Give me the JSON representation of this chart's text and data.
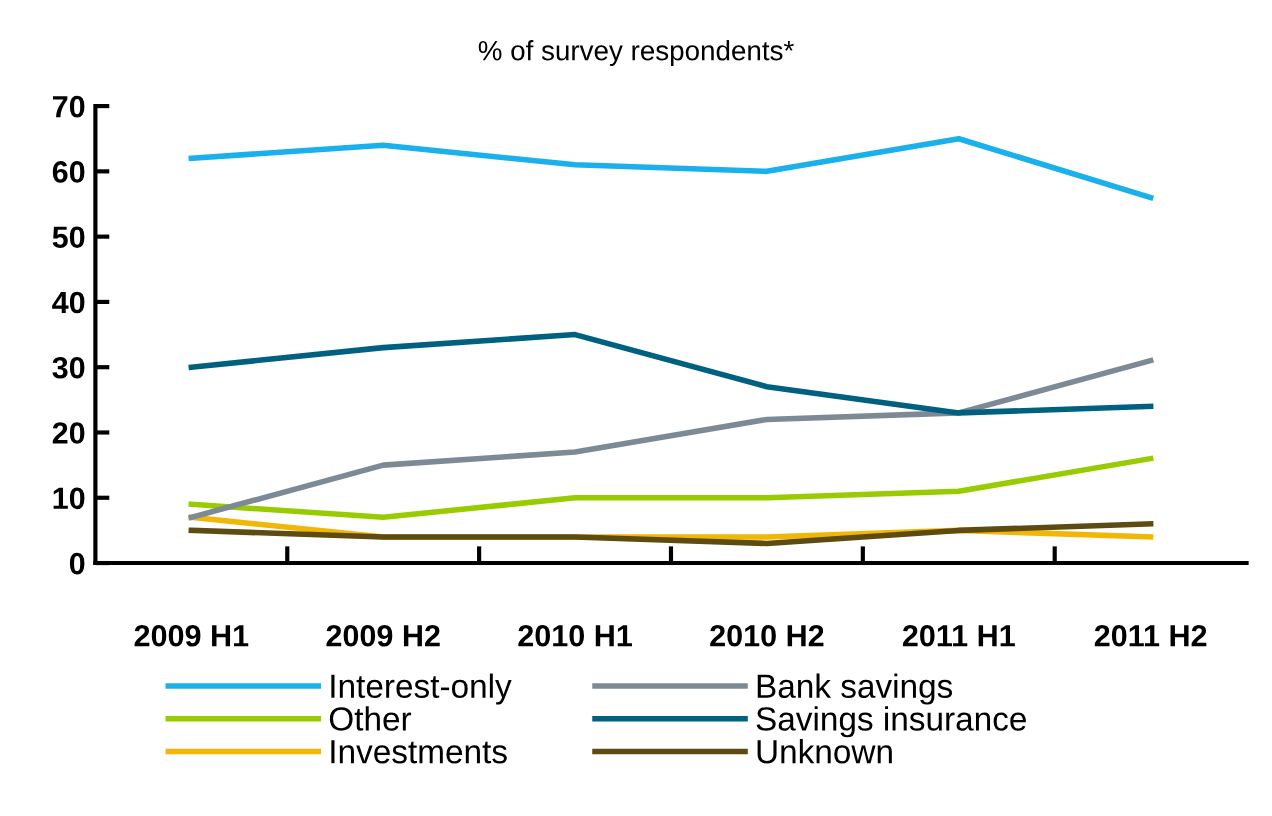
{
  "chart_data": {
    "type": "line",
    "title": "% of survey respondents*",
    "categories": [
      "2009 H1",
      "2009 H2",
      "2010 H1",
      "2010 H2",
      "2011 H1",
      "2011 H2"
    ],
    "series": [
      {
        "name": "Interest-only",
        "color": "#1ab0ec",
        "values": [
          62,
          64,
          61,
          60,
          65,
          56
        ]
      },
      {
        "name": "Other",
        "color": "#99cc00",
        "values": [
          9,
          7,
          10,
          10,
          11,
          16
        ]
      },
      {
        "name": "Investments",
        "color": "#f2b705",
        "values": [
          7,
          4,
          4,
          4,
          5,
          4
        ]
      },
      {
        "name": "Bank savings",
        "color": "#7d8a96",
        "values": [
          7,
          15,
          17,
          22,
          23,
          31
        ]
      },
      {
        "name": "Savings insurance",
        "color": "#006080",
        "values": [
          30,
          33,
          35,
          27,
          23,
          24
        ]
      },
      {
        "name": "Unknown",
        "color": "#5e4b12",
        "values": [
          5,
          4,
          4,
          3,
          5,
          6
        ]
      }
    ],
    "ylim": [
      0,
      70
    ],
    "yticks": [
      0,
      10,
      20,
      30,
      40,
      50,
      60,
      70
    ],
    "grid": false,
    "legend": "bottom",
    "marker": "none",
    "line_style": "solid"
  }
}
